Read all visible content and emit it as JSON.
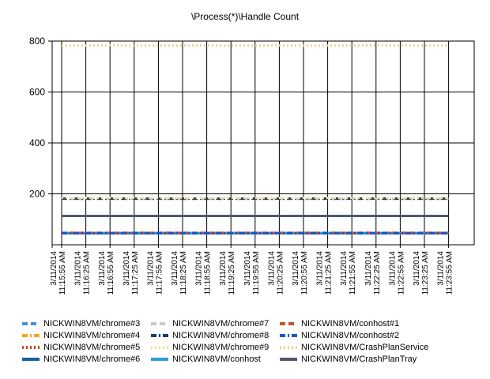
{
  "chart_data": {
    "type": "line",
    "title": "\\Process(*)\\Handle Count",
    "xlabel": "",
    "ylabel": "",
    "ylim": [
      0,
      800
    ],
    "yticks": [
      200,
      400,
      600,
      800
    ],
    "grid": true,
    "legend_position": "bottom",
    "x_tick_labels": [
      [
        "3/11/2014",
        "11:15:55 AM"
      ],
      [
        "3/11/2014",
        "11:16:25 AM"
      ],
      [
        "3/11/2014",
        "11:16:55 AM"
      ],
      [
        "3/11/2014",
        "11:17:25 AM"
      ],
      [
        "3/11/2014",
        "11:17:55 AM"
      ],
      [
        "3/11/2014",
        "11:18:25 AM"
      ],
      [
        "3/11/2014",
        "11:18:55 AM"
      ],
      [
        "3/11/2014",
        "11:19:25 AM"
      ],
      [
        "3/11/2014",
        "11:19:55 AM"
      ],
      [
        "3/11/2014",
        "11:20:25 AM"
      ],
      [
        "3/11/2014",
        "11:20:55 AM"
      ],
      [
        "3/11/2014",
        "11:21:25 AM"
      ],
      [
        "3/11/2014",
        "11:21:55 AM"
      ],
      [
        "3/11/2014",
        "11:22:25 AM"
      ],
      [
        "3/11/2014",
        "11:22:55 AM"
      ],
      [
        "3/11/2014",
        "11:23:25 AM"
      ],
      [
        "3/11/2014",
        "11:23:55 AM"
      ]
    ],
    "series": [
      {
        "name": "NICKWIN8VM/chrome#3",
        "color": "#4a90d9",
        "dash": "dash",
        "values": [
          45,
          45,
          45,
          45,
          45,
          45,
          45,
          45,
          45,
          45,
          45,
          45,
          45,
          45,
          45,
          45,
          45
        ]
      },
      {
        "name": "NICKWIN8VM/chrome#4",
        "color": "#f5a623",
        "dash": "dashdot",
        "values": [
          182,
          182,
          182,
          182,
          182,
          182,
          182,
          182,
          182,
          182,
          182,
          182,
          182,
          182,
          182,
          182,
          182
        ]
      },
      {
        "name": "NICKWIN8VM/chrome#5",
        "color": "#d04010",
        "dash": "dot",
        "values": [
          183,
          183,
          183,
          183,
          183,
          183,
          183,
          183,
          183,
          183,
          183,
          183,
          183,
          183,
          183,
          183,
          183
        ]
      },
      {
        "name": "NICKWIN8VM/chrome#6",
        "color": "#1a5f9e",
        "dash": "solid",
        "values": [
          45,
          45,
          45,
          45,
          45,
          45,
          45,
          45,
          45,
          45,
          45,
          45,
          45,
          45,
          45,
          45,
          45
        ]
      },
      {
        "name": "NICKWIN8VM/chrome#7",
        "color": "#c8c8c8",
        "dash": "dash",
        "values": [
          180,
          180,
          180,
          180,
          180,
          180,
          180,
          180,
          180,
          180,
          180,
          180,
          180,
          180,
          180,
          180,
          180
        ]
      },
      {
        "name": "NICKWIN8VM/chrome#8",
        "color": "#1f3a6b",
        "dash": "dashdot",
        "values": [
          181,
          181,
          181,
          181,
          181,
          181,
          181,
          181,
          181,
          181,
          181,
          181,
          181,
          181,
          181,
          181,
          181
        ]
      },
      {
        "name": "NICKWIN8VM/chrome#9",
        "color": "#f7e08a",
        "dash": "dot",
        "values": [
          184,
          184,
          184,
          184,
          184,
          184,
          184,
          184,
          184,
          184,
          184,
          184,
          184,
          184,
          184,
          184,
          184
        ]
      },
      {
        "name": "NICKWIN8VM/conhost",
        "color": "#2b9be0",
        "dash": "solid",
        "values": [
          46,
          46,
          46,
          46,
          46,
          46,
          46,
          46,
          46,
          46,
          46,
          46,
          46,
          46,
          46,
          46,
          46
        ]
      },
      {
        "name": "NICKWIN8VM/conhost#1",
        "color": "#c8502a",
        "dash": "dash",
        "values": [
          47,
          47,
          47,
          47,
          47,
          47,
          47,
          47,
          47,
          47,
          47,
          47,
          47,
          47,
          47,
          47,
          47
        ]
      },
      {
        "name": "NICKWIN8VM/conhost#2",
        "color": "#1656c8",
        "dash": "dashdot",
        "values": [
          46,
          46,
          46,
          46,
          46,
          46,
          46,
          46,
          46,
          46,
          46,
          46,
          46,
          46,
          46,
          46,
          46
        ]
      },
      {
        "name": "NICKWIN8VM/CrashPlanService",
        "color": "#f3d08c",
        "dash": "dot",
        "values": [
          782,
          782,
          784,
          782,
          782,
          782,
          783,
          782,
          782,
          783,
          782,
          782,
          782,
          784,
          782,
          782,
          783
        ]
      },
      {
        "name": "NICKWIN8VM/CrashPlanTray",
        "color": "#4a5a70",
        "dash": "solid",
        "values": [
          113,
          113,
          113,
          113,
          113,
          113,
          113,
          113,
          113,
          113,
          113,
          113,
          113,
          113,
          113,
          113,
          113
        ]
      }
    ]
  }
}
